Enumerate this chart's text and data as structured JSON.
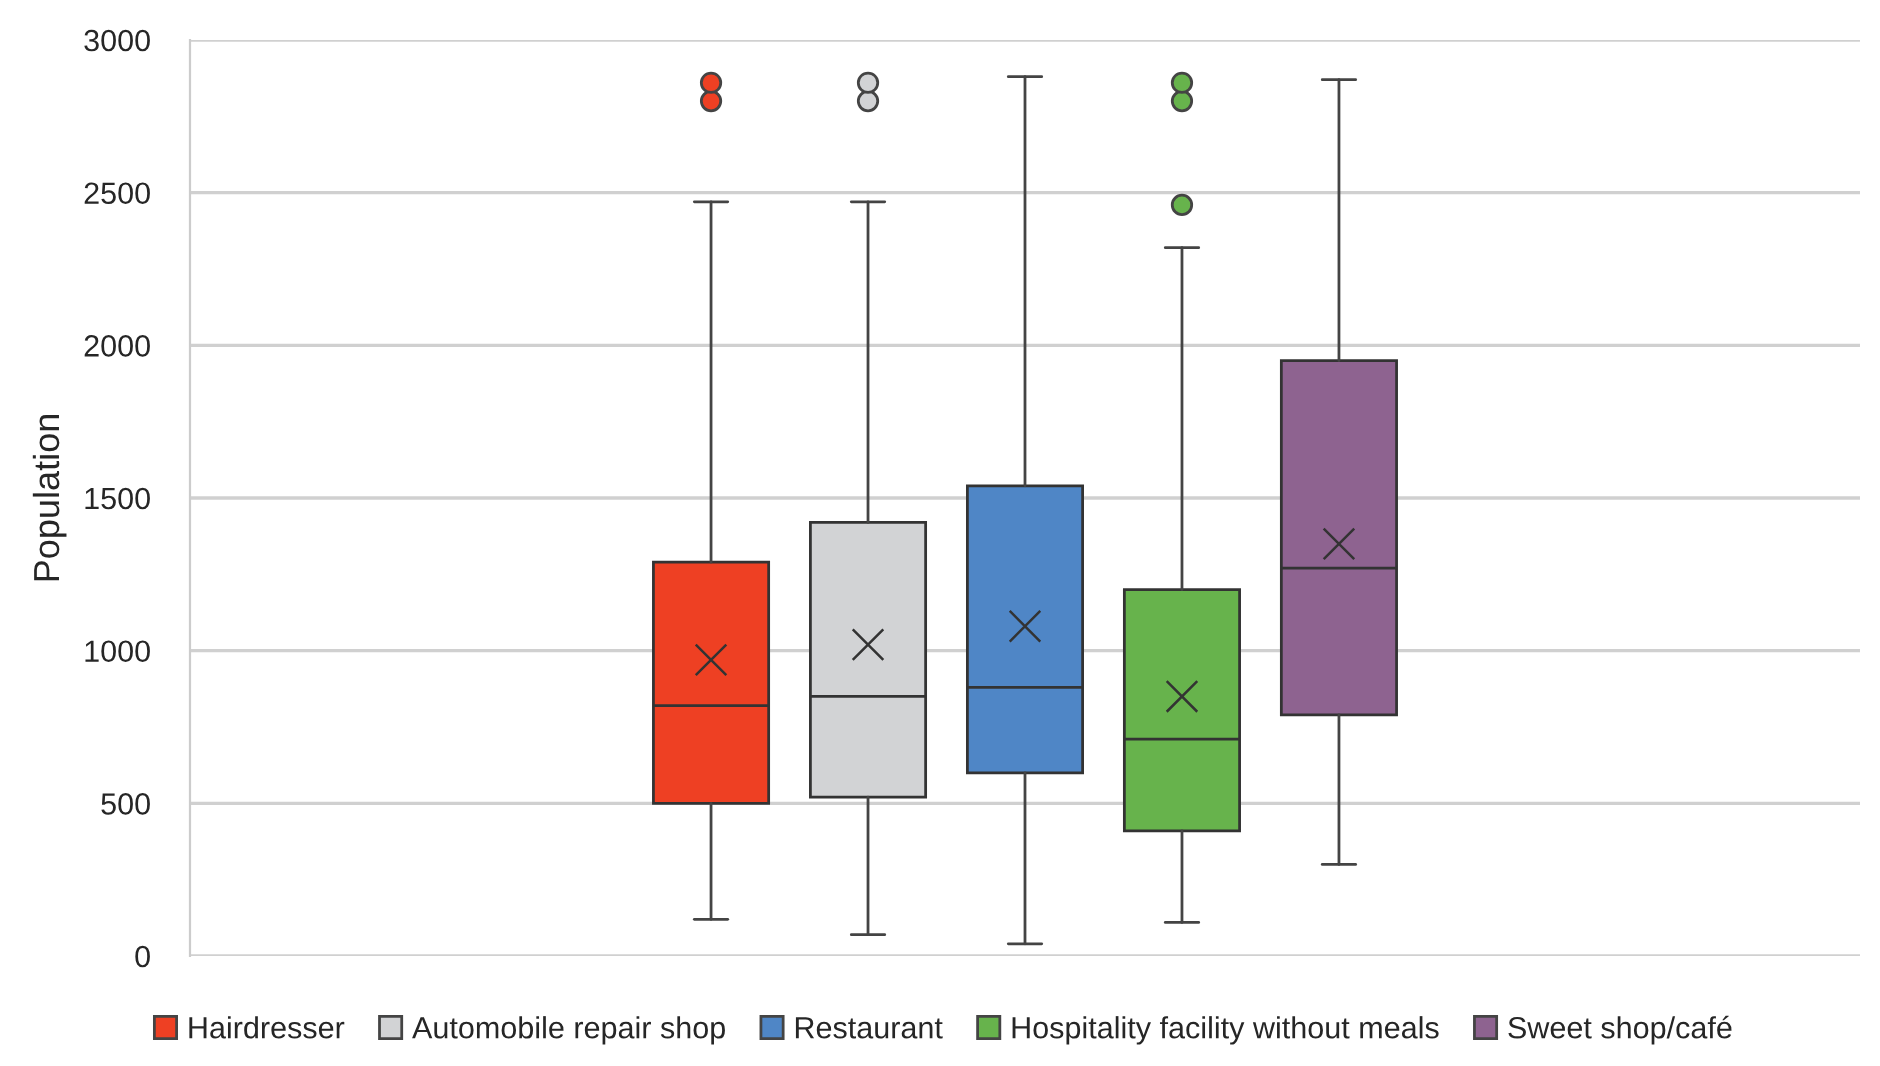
{
  "chart_data": {
    "type": "box",
    "ylabel": "Population",
    "categories": [
      null
    ],
    "ylim": [
      0,
      3000
    ],
    "yticks": [
      0,
      500,
      1000,
      1500,
      2000,
      2500,
      3000
    ],
    "grid": "y",
    "legend": "bottom",
    "tick_labels": "y",
    "series": [
      {
        "name": "Hairdresser",
        "color": "#ee4023",
        "boxes": [
          {
            "low": 120,
            "q1": 500,
            "median": 820,
            "q3": 1290,
            "high": 2470,
            "mean": 970,
            "outliers": [
              2800,
              2860
            ]
          }
        ]
      },
      {
        "name": "Automobile repair shop",
        "color": "#d2d3d5",
        "boxes": [
          {
            "low": 70,
            "q1": 520,
            "median": 850,
            "q3": 1420,
            "high": 2470,
            "mean": 1020,
            "outliers": [
              2800,
              2860
            ]
          }
        ]
      },
      {
        "name": "Restaurant",
        "color": "#4f86c6",
        "boxes": [
          {
            "low": 40,
            "q1": 600,
            "median": 880,
            "q3": 1540,
            "high": 2880,
            "mean": 1080
          }
        ]
      },
      {
        "name": "Hospitality facility without meals",
        "color": "#67b34c",
        "boxes": [
          {
            "low": 110,
            "q1": 410,
            "median": 710,
            "q3": 1200,
            "high": 2320,
            "mean": 850,
            "outliers": [
              2460,
              2800,
              2860
            ]
          }
        ]
      },
      {
        "name": "Sweet shop/café",
        "color": "#8e6390",
        "boxes": [
          {
            "low": 300,
            "q1": 790,
            "median": 1270,
            "q3": 1950,
            "high": 2870,
            "mean": 1350
          }
        ]
      }
    ]
  }
}
